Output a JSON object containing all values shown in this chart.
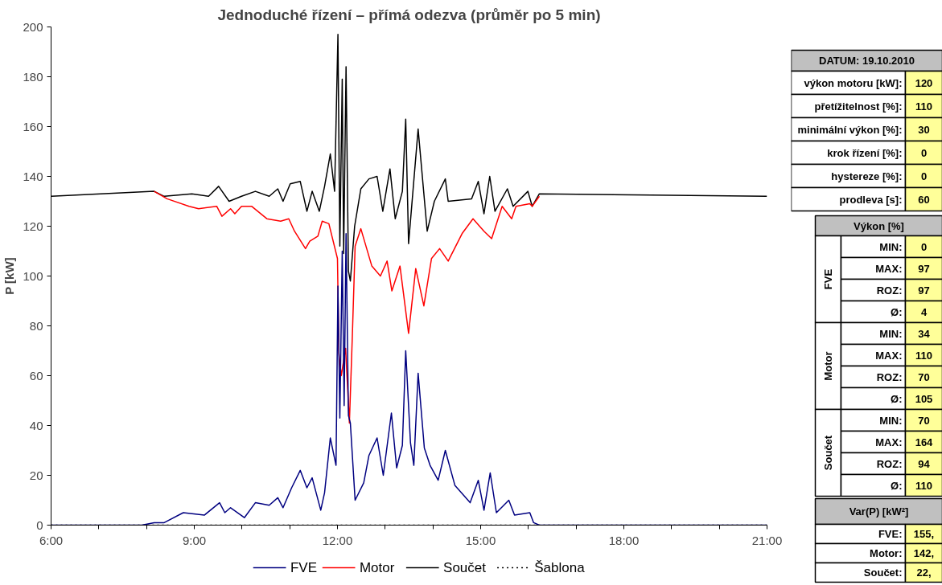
{
  "chart_data": [
    {
      "type": "line",
      "title": "Jednoduché řízení – přímá odezva (průměr po 5 min)",
      "ylabel": "P [kW]",
      "xlim": [
        6,
        21
      ],
      "xticks": [
        {
          "value": 6,
          "label": "6:00"
        },
        {
          "value": 7,
          "label": null
        },
        {
          "value": 8,
          "label": null
        },
        {
          "value": 9,
          "label": "9:00"
        },
        {
          "value": 10,
          "label": null
        },
        {
          "value": 11,
          "label": null
        },
        {
          "value": 12,
          "label": "12:00"
        },
        {
          "value": 13,
          "label": null
        },
        {
          "value": 14,
          "label": null
        },
        {
          "value": 15,
          "label": "15:00"
        },
        {
          "value": 16,
          "label": null
        },
        {
          "value": 17,
          "label": null
        },
        {
          "value": 18,
          "label": "18:00"
        },
        {
          "value": 19,
          "label": null
        },
        {
          "value": 20,
          "label": null
        },
        {
          "value": 21,
          "label": "21:00"
        }
      ],
      "ylim": [
        0,
        200
      ],
      "yticks": [
        0,
        20,
        40,
        60,
        80,
        100,
        120,
        140,
        160,
        180,
        200
      ],
      "grid": false,
      "legend": "bottom",
      "series": [
        {
          "name": "FVE",
          "color": "#000080",
          "line_style": "solid",
          "x": [
            6,
            7.9,
            8.16,
            8.37,
            8.77,
            9.21,
            9.53,
            9.64,
            9.76,
            10.05,
            10.28,
            10.57,
            10.75,
            10.86,
            11.04,
            11.22,
            11.36,
            11.47,
            11.65,
            11.73,
            11.85,
            11.97,
            12.01,
            12.05,
            12.1,
            12.14,
            12.18,
            12.23,
            12.27,
            12.37,
            12.55,
            12.66,
            12.83,
            12.96,
            13.13,
            13.24,
            13.36,
            13.43,
            13.53,
            13.6,
            13.69,
            13.82,
            13.94,
            14.11,
            14.26,
            14.46,
            14.78,
            14.95,
            15.07,
            15.2,
            15.33,
            15.59,
            15.71,
            16.03,
            16.11,
            16.23,
            21
          ],
          "values": [
            0,
            0,
            1,
            1,
            5,
            4,
            9,
            5,
            7,
            3,
            9,
            8,
            11,
            7,
            15,
            22,
            15,
            19,
            6,
            13,
            35,
            24,
            96,
            43,
            110,
            48,
            117,
            44,
            41,
            10,
            17,
            28,
            35,
            20,
            45,
            23,
            32,
            70,
            33,
            24,
            61,
            31,
            24,
            18,
            30,
            16,
            9,
            18,
            6,
            21,
            5,
            10,
            4,
            5,
            1,
            0,
            0
          ]
        },
        {
          "name": "Motor",
          "color": "#ff0000",
          "line_style": "solid",
          "x": [
            8.16,
            8.43,
            8.89,
            9.09,
            9.47,
            9.58,
            9.76,
            9.85,
            9.99,
            10.2,
            10.52,
            10.81,
            10.98,
            11.1,
            11.33,
            11.42,
            11.59,
            11.68,
            11.82,
            12.0,
            12.03,
            12.08,
            12.17,
            12.25,
            12.31,
            12.37,
            12.49,
            12.72,
            12.9,
            13.04,
            13.14,
            13.31,
            13.49,
            13.64,
            13.81,
            13.97,
            14.14,
            14.32,
            14.61,
            14.84,
            15.07,
            15.23,
            15.45,
            15.65,
            15.74,
            16.03,
            16.08,
            16.23
          ],
          "values": [
            134,
            131,
            128,
            127,
            128,
            124,
            127,
            125,
            128,
            128,
            123,
            122,
            123,
            118,
            111,
            114,
            116,
            122,
            121,
            107,
            69,
            60,
            71,
            41,
            75,
            112,
            119,
            104,
            100,
            106,
            94,
            104,
            77,
            103,
            88,
            107,
            111,
            106,
            117,
            123,
            118,
            115,
            128,
            123,
            128,
            129,
            128,
            132
          ]
        },
        {
          "name": "Součet",
          "color": "#000000",
          "line_style": "solid",
          "x": [
            6,
            8.16,
            8.37,
            8.95,
            9.3,
            9.51,
            9.73,
            9.99,
            10.28,
            10.57,
            10.75,
            10.86,
            11.01,
            11.22,
            11.36,
            11.47,
            11.62,
            11.73,
            11.85,
            11.94,
            12.01,
            12.05,
            12.1,
            12.13,
            12.18,
            12.23,
            12.27,
            12.36,
            12.49,
            12.66,
            12.83,
            12.95,
            13.1,
            13.21,
            13.36,
            13.43,
            13.49,
            13.69,
            13.88,
            14.03,
            14.26,
            14.32,
            14.81,
            14.95,
            15.07,
            15.19,
            15.3,
            15.56,
            15.68,
            15.99,
            16.08,
            16.23,
            21
          ],
          "values": [
            132,
            134,
            132,
            133,
            132,
            136,
            130,
            132,
            134,
            132,
            135,
            130,
            137,
            138,
            126,
            134,
            126,
            136,
            149,
            134,
            197,
            112,
            179,
            109,
            184,
            102,
            98,
            120,
            135,
            139,
            140,
            126,
            143,
            123,
            134,
            163,
            113,
            159,
            118,
            130,
            139,
            130,
            131,
            138,
            125,
            140,
            126,
            135,
            128,
            134,
            128,
            133,
            132
          ]
        },
        {
          "name": "Šablona",
          "color": "#000000",
          "line_style": "dotted",
          "x": [
            6,
            21
          ],
          "values": [
            0,
            0
          ]
        }
      ]
    },
    {
      "type": "other",
      "annotations": [
        "DATUM: 19.10.2010",
        "výkon motoru [kW]:",
        "120",
        "přetížitelnost [%]:",
        "110",
        "minimální výkon [%]:",
        "30",
        "krok řízení [%]:",
        "0",
        "hystereze [%]:",
        "0",
        "prodleva [s]:",
        "60",
        "Výkon [%]",
        "FVE",
        "MIN:",
        "0",
        "MAX:",
        "97",
        "ROZ:",
        "97",
        "Ø:",
        "4",
        "Motor",
        "MIN:",
        "34",
        "MAX:",
        "110",
        "ROZ:",
        "70",
        "Ø:",
        "105",
        "Součet",
        "MIN:",
        "70",
        "MAX:",
        "164",
        "ROZ:",
        "94",
        "Ø:",
        "110",
        "Var(P) [kW²]",
        "FVE:",
        "155,",
        "Motor:",
        "142,",
        "Součet:",
        "22,"
      ]
    }
  ]
}
